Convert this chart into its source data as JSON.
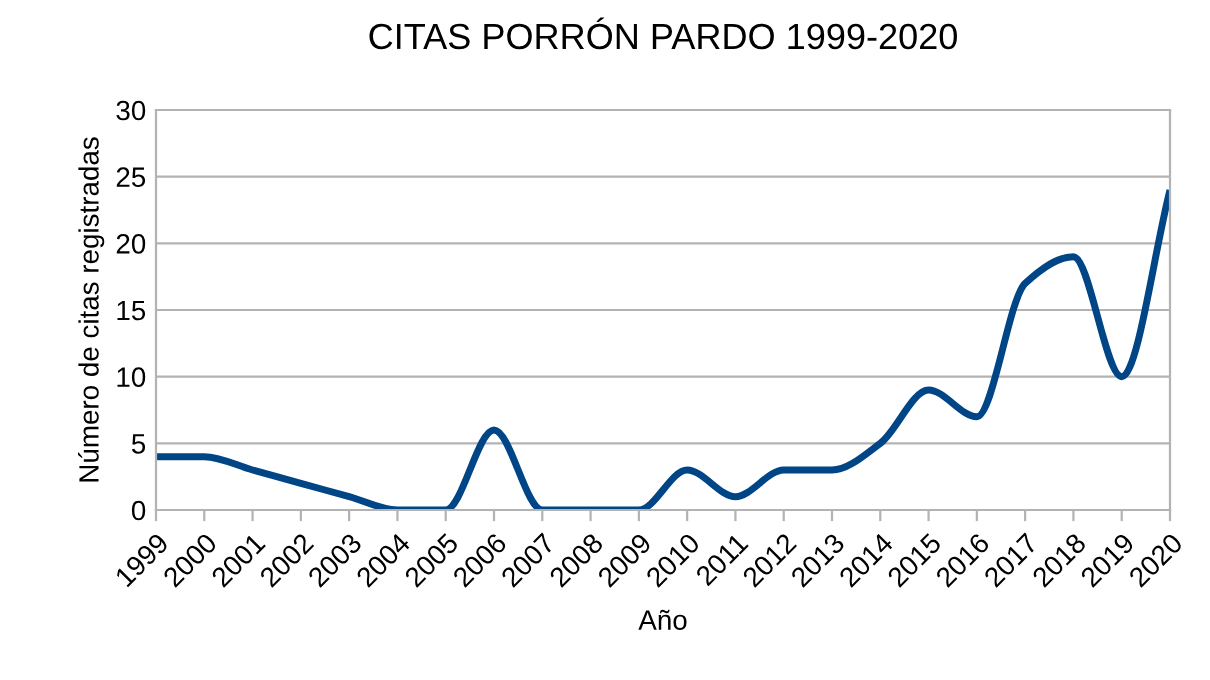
{
  "chart_data": {
    "type": "line",
    "title": "CITAS PORRÓN PARDO 1999-2020",
    "xlabel": "Año",
    "ylabel": "Número de citas registradas",
    "categories": [
      "1999",
      "2000",
      "2001",
      "2002",
      "2003",
      "2004",
      "2005",
      "2006",
      "2007",
      "2008",
      "2009",
      "2010",
      "2011",
      "2012",
      "2013",
      "2014",
      "2015",
      "2016",
      "2017",
      "2018",
      "2019",
      "2020"
    ],
    "series": [
      {
        "color": "#004586",
        "values": [
          4,
          4,
          3,
          2,
          1,
          0,
          0,
          6,
          0,
          0,
          0,
          3,
          1,
          3,
          3,
          5,
          9,
          7,
          17,
          19,
          10,
          24
        ]
      }
    ],
    "ylim": [
      0,
      30
    ],
    "yticks": [
      0,
      5,
      10,
      15,
      20,
      25,
      30
    ],
    "grid": "y",
    "marker": "none",
    "line_style": "solid"
  }
}
